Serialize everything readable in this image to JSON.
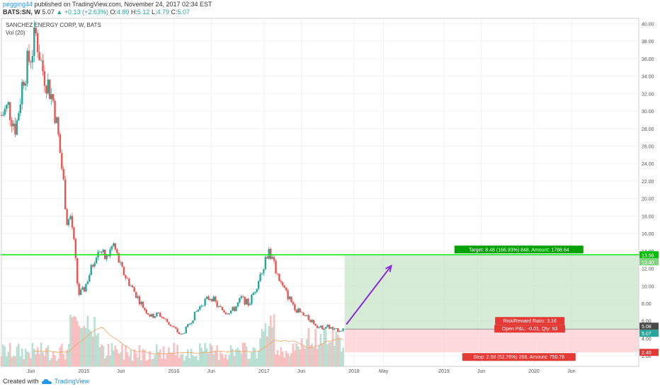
{
  "header": {
    "author": "pegging44",
    "published": "published on TradingView.com, November 24, 2017 02:34 EST",
    "symbol": "BATS:SN, W",
    "last": "5.07",
    "change": "▲ +0.13 (+2.63%)",
    "o_label": "O:",
    "o": "4.89",
    "h_label": "H:",
    "h": "5.12",
    "l_label": "L:",
    "l": "4.79",
    "c_label": "C:",
    "c": "5.07"
  },
  "chart": {
    "name": "SANCHEZ ENERGY CORP, W, BATS",
    "volume_label": "Vol (20)"
  },
  "footer": {
    "created": "Created with",
    "brand": "TradingView"
  },
  "colors": {
    "up": "#26a69a",
    "down": "#ef5350",
    "target_line": "#00e600",
    "arrow": "#8a2be2",
    "profit_zone": "#c8e6c9",
    "loss_zone": "#ffcdd2"
  },
  "chart_data": {
    "type": "candlestick",
    "ylim": [
      0.8,
      40.6
    ],
    "yticks": [
      2,
      4,
      6,
      8,
      10,
      12,
      14,
      16,
      18,
      20,
      22,
      24,
      26,
      28,
      30,
      32,
      34,
      36,
      38,
      40
    ],
    "ytick_labels": [
      "2.00",
      "4.00",
      "6.00",
      "8.00",
      "10.00",
      "12.00",
      "14.00",
      "16.00",
      "18.00",
      "20.00",
      "22.00",
      "24.00",
      "26.00",
      "28.00",
      "30.00",
      "32.00",
      "34.00",
      "36.00",
      "38.00",
      "40.00"
    ],
    "xtick_labels": [
      {
        "date": "2014-06-01",
        "label": "Jun"
      },
      {
        "date": "2015-01-01",
        "label": "2015"
      },
      {
        "date": "2015-06-01",
        "label": "Jun"
      },
      {
        "date": "2016-01-01",
        "label": "2016"
      },
      {
        "date": "2016-06-01",
        "label": "Jun"
      },
      {
        "date": "2017-01-01",
        "label": "2017"
      },
      {
        "date": "2017-06-01",
        "label": "Jun"
      },
      {
        "date": "2018-01-01",
        "label": "2018"
      },
      {
        "date": "2018-05-01",
        "label": "May"
      },
      {
        "date": "2019-01-01",
        "label": "2019"
      },
      {
        "date": "2019-06-01",
        "label": "Jun"
      },
      {
        "date": "2020-01-01",
        "label": "2020"
      },
      {
        "date": "2020-06-01",
        "label": "Jun"
      }
    ],
    "xlim": [
      "2014-02-01",
      "2021-03-01"
    ],
    "price_path": [
      {
        "date": "2014-02-01",
        "close": 29.5
      },
      {
        "date": "2014-03-01",
        "close": 30.5
      },
      {
        "date": "2014-04-01",
        "close": 28.0
      },
      {
        "date": "2014-05-01",
        "close": 34.0
      },
      {
        "date": "2014-06-01",
        "close": 36.5
      },
      {
        "date": "2014-06-22",
        "close": 38.8
      },
      {
        "date": "2014-07-15",
        "close": 35.0
      },
      {
        "date": "2014-08-10",
        "close": 33.0
      },
      {
        "date": "2014-09-01",
        "close": 31.0
      },
      {
        "date": "2014-09-20",
        "close": 27.0
      },
      {
        "date": "2014-10-10",
        "close": 22.0
      },
      {
        "date": "2014-10-25",
        "close": 17.5
      },
      {
        "date": "2014-11-10",
        "close": 18.0
      },
      {
        "date": "2014-11-25",
        "close": 14.0
      },
      {
        "date": "2014-12-10",
        "close": 9.0
      },
      {
        "date": "2015-01-01",
        "close": 9.5
      },
      {
        "date": "2015-02-01",
        "close": 12.0
      },
      {
        "date": "2015-03-01",
        "close": 14.5
      },
      {
        "date": "2015-04-01",
        "close": 13.0
      },
      {
        "date": "2015-05-01",
        "close": 14.8
      },
      {
        "date": "2015-06-01",
        "close": 12.0
      },
      {
        "date": "2015-07-01",
        "close": 10.5
      },
      {
        "date": "2015-08-01",
        "close": 9.0
      },
      {
        "date": "2015-09-01",
        "close": 7.5
      },
      {
        "date": "2015-10-01",
        "close": 6.5
      },
      {
        "date": "2015-11-01",
        "close": 6.8
      },
      {
        "date": "2015-12-01",
        "close": 6.0
      },
      {
        "date": "2016-01-01",
        "close": 5.2
      },
      {
        "date": "2016-02-01",
        "close": 4.3
      },
      {
        "date": "2016-03-01",
        "close": 5.5
      },
      {
        "date": "2016-04-01",
        "close": 7.0
      },
      {
        "date": "2016-05-01",
        "close": 8.2
      },
      {
        "date": "2016-06-01",
        "close": 8.8
      },
      {
        "date": "2016-07-01",
        "close": 7.5
      },
      {
        "date": "2016-08-01",
        "close": 7.0
      },
      {
        "date": "2016-09-01",
        "close": 7.3
      },
      {
        "date": "2016-10-01",
        "close": 8.6
      },
      {
        "date": "2016-11-01",
        "close": 7.9
      },
      {
        "date": "2016-12-01",
        "close": 10.0
      },
      {
        "date": "2017-01-01",
        "close": 12.6
      },
      {
        "date": "2017-01-20",
        "close": 14.2
      },
      {
        "date": "2017-02-15",
        "close": 12.0
      },
      {
        "date": "2017-03-15",
        "close": 10.0
      },
      {
        "date": "2017-04-15",
        "close": 8.5
      },
      {
        "date": "2017-05-15",
        "close": 7.2
      },
      {
        "date": "2017-06-15",
        "close": 6.5
      },
      {
        "date": "2017-07-15",
        "close": 6.0
      },
      {
        "date": "2017-08-15",
        "close": 5.2
      },
      {
        "date": "2017-09-15",
        "close": 5.4
      },
      {
        "date": "2017-10-15",
        "close": 4.9
      },
      {
        "date": "2017-11-24",
        "close": 5.07
      }
    ],
    "position": {
      "entry": 5.07,
      "target": 13.56,
      "target_label": "Target: 8.48 (166.93%) 848, Amount: 1788.64",
      "stop": 2.4,
      "stop_label": "Stop: 2.68 (52.76%) 268, Amount: 750.76",
      "pnl_label": "Open P&L: -0.01, Qty: 93",
      "rr_label": "Risk/Reward Ratio: 3.16",
      "start": "2017-11-24",
      "end": "2021-03-01"
    },
    "horizontal_line": 13.56,
    "price_tags": [
      {
        "value": "13.56",
        "color": "#00c000"
      },
      {
        "value": "13.40",
        "color": "#7cd67c"
      },
      {
        "value": "5.08",
        "color": "#4a4a4a"
      },
      {
        "value": "5.07",
        "color": "#26a69a"
      },
      {
        "value": "2.40",
        "color": "#e53935"
      }
    ]
  }
}
